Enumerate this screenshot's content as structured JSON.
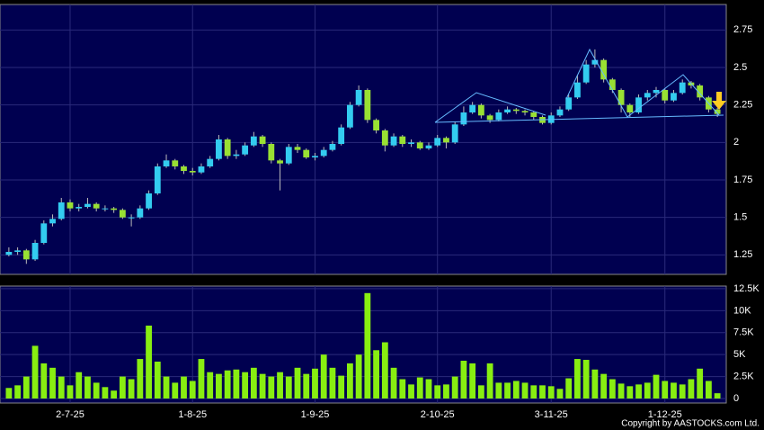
{
  "chart_data": {
    "type": "candlestick",
    "categories": [
      null,
      null,
      null,
      null,
      null,
      null,
      null,
      "2-7-25",
      null,
      null,
      null,
      null,
      null,
      null,
      null,
      null,
      null,
      null,
      null,
      null,
      null,
      "1-8-25",
      null,
      null,
      null,
      null,
      null,
      null,
      null,
      null,
      null,
      null,
      null,
      null,
      null,
      "1-9-25",
      null,
      null,
      null,
      null,
      null,
      null,
      null,
      null,
      null,
      null,
      null,
      null,
      null,
      "2-10-25",
      null,
      null,
      null,
      null,
      null,
      null,
      null,
      null,
      null,
      null,
      null,
      null,
      "3-11-25",
      null,
      null,
      null,
      null,
      null,
      null,
      null,
      null,
      null,
      null,
      null,
      null,
      "1-12-25",
      null,
      null,
      null,
      null,
      null,
      null
    ],
    "open": [
      1.25,
      1.27,
      1.28,
      1.22,
      1.33,
      1.46,
      1.49,
      1.6,
      1.56,
      1.57,
      1.59,
      1.56,
      1.56,
      1.55,
      1.5,
      1.5,
      1.56,
      1.66,
      1.84,
      1.88,
      1.84,
      1.81,
      1.8,
      1.84,
      1.89,
      2.02,
      1.91,
      1.92,
      1.98,
      2.04,
      1.99,
      1.88,
      1.86,
      1.97,
      1.95,
      1.9,
      1.91,
      1.95,
      1.99,
      2.1,
      2.25,
      2.35,
      2.15,
      2.08,
      1.98,
      2.04,
      1.99,
      2.0,
      1.96,
      1.98,
      2.03,
      2.0,
      2.12,
      2.2,
      2.25,
      2.18,
      2.15,
      2.2,
      2.22,
      2.21,
      2.2,
      2.17,
      2.13,
      2.18,
      2.22,
      2.3,
      2.4,
      2.52,
      2.55,
      2.42,
      2.35,
      2.25,
      2.2,
      2.3,
      2.33,
      2.35,
      2.28,
      2.33,
      2.4,
      2.38,
      2.3,
      2.22
    ],
    "high": [
      1.3,
      1.3,
      1.29,
      1.35,
      1.48,
      1.52,
      1.63,
      1.62,
      1.59,
      1.63,
      1.6,
      1.58,
      1.57,
      1.56,
      1.52,
      1.58,
      1.68,
      1.86,
      1.92,
      1.89,
      1.85,
      1.83,
      1.86,
      1.91,
      2.05,
      2.03,
      1.95,
      2.0,
      2.07,
      2.05,
      2.0,
      1.89,
      1.99,
      1.99,
      1.96,
      1.93,
      1.97,
      2.01,
      2.12,
      2.27,
      2.38,
      2.36,
      2.16,
      2.09,
      2.06,
      2.05,
      2.02,
      2.01,
      2.0,
      2.05,
      2.04,
      2.14,
      2.24,
      2.27,
      2.26,
      2.19,
      2.22,
      2.24,
      2.23,
      2.22,
      2.21,
      2.18,
      2.2,
      2.24,
      2.32,
      2.45,
      2.55,
      2.62,
      2.56,
      2.43,
      2.36,
      2.26,
      2.32,
      2.35,
      2.37,
      2.36,
      2.35,
      2.42,
      2.41,
      2.39,
      2.31,
      2.23
    ],
    "low": [
      1.24,
      1.25,
      1.19,
      1.21,
      1.32,
      1.44,
      1.48,
      1.54,
      1.54,
      1.56,
      1.54,
      1.54,
      1.53,
      1.49,
      1.44,
      1.49,
      1.55,
      1.65,
      1.83,
      1.82,
      1.79,
      1.78,
      1.79,
      1.83,
      1.88,
      1.89,
      1.89,
      1.91,
      1.97,
      1.97,
      1.86,
      1.68,
      1.85,
      1.93,
      1.89,
      1.88,
      1.9,
      1.94,
      1.98,
      2.09,
      2.24,
      2.13,
      2.06,
      1.94,
      1.97,
      1.97,
      1.97,
      1.95,
      1.95,
      1.97,
      1.96,
      1.99,
      2.11,
      2.19,
      2.16,
      2.13,
      2.14,
      2.19,
      2.19,
      2.18,
      2.15,
      2.12,
      2.12,
      2.17,
      2.21,
      2.29,
      2.39,
      2.5,
      2.4,
      2.33,
      2.2,
      2.17,
      2.19,
      2.28,
      2.3,
      2.26,
      2.27,
      2.32,
      2.36,
      2.28,
      2.2,
      2.17
    ],
    "close": [
      1.27,
      1.28,
      1.22,
      1.33,
      1.46,
      1.49,
      1.6,
      1.56,
      1.57,
      1.59,
      1.56,
      1.56,
      1.55,
      1.5,
      1.5,
      1.56,
      1.66,
      1.84,
      1.88,
      1.84,
      1.81,
      1.8,
      1.84,
      1.89,
      2.02,
      1.91,
      1.92,
      1.98,
      2.04,
      1.99,
      1.88,
      1.86,
      1.97,
      1.95,
      1.9,
      1.91,
      1.95,
      1.99,
      2.1,
      2.25,
      2.35,
      2.15,
      2.08,
      1.98,
      2.04,
      1.99,
      2.0,
      1.96,
      1.98,
      2.03,
      2.0,
      2.12,
      2.2,
      2.25,
      2.18,
      2.15,
      2.2,
      2.22,
      2.21,
      2.2,
      2.17,
      2.13,
      2.18,
      2.22,
      2.3,
      2.4,
      2.52,
      2.55,
      2.42,
      2.35,
      2.25,
      2.2,
      2.3,
      2.33,
      2.35,
      2.28,
      2.33,
      2.4,
      2.38,
      2.3,
      2.22,
      2.19
    ],
    "up_color": "#33ccf0",
    "down_color": "#99e033",
    "ylim": [
      1.12,
      2.92
    ],
    "yticks": [
      1.25,
      1.5,
      1.75,
      2,
      2.25,
      2.5,
      2.75
    ],
    "volume": {
      "values": [
        1200,
        1500,
        2500,
        6000,
        4000,
        3500,
        2500,
        1500,
        3000,
        2500,
        1800,
        1300,
        900,
        2500,
        2200,
        4500,
        8300,
        4200,
        2500,
        1800,
        2500,
        2000,
        4500,
        3000,
        2800,
        3200,
        3300,
        3000,
        3500,
        2800,
        2500,
        3000,
        2500,
        3500,
        2800,
        3400,
        5000,
        3500,
        2600,
        4000,
        5000,
        12000,
        5500,
        6400,
        3500,
        2200,
        1600,
        2400,
        2200,
        1500,
        1600,
        2500,
        4300,
        4000,
        1500,
        4000,
        1800,
        1800,
        2000,
        1800,
        1500,
        1500,
        1400,
        1100,
        2300,
        4500,
        4400,
        3300,
        2800,
        2200,
        1700,
        1400,
        1600,
        1800,
        2700,
        2000,
        1800,
        1600,
        2200,
        3400,
        2000,
        600
      ],
      "color": "#88ee11",
      "ylim": [
        0,
        12800
      ],
      "yticks": [
        0,
        {
          "value": 2500,
          "label": "2.5K"
        },
        {
          "value": 5000,
          "label": "5K"
        },
        {
          "value": 7500,
          "label": "7.5K"
        },
        {
          "value": 10000,
          "label": "10K"
        },
        {
          "value": 12500,
          "label": "12.5K"
        }
      ]
    },
    "copyright": "Copyright by AASTOCKS.com Ltd."
  }
}
